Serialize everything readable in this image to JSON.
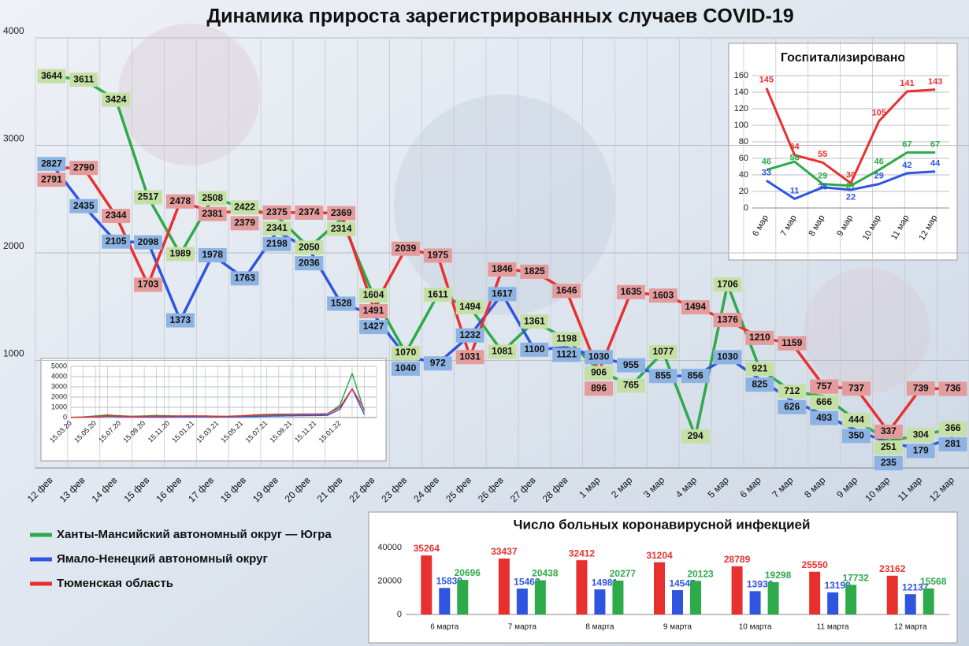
{
  "chart_data": [
    {
      "type": "line",
      "title": "Динамика прироста зарегистрированных случаев COVID-19",
      "categories": [
        "12 фев",
        "13 фев",
        "14 фев",
        "15 фев",
        "16 фев",
        "17 фев",
        "18 фев",
        "19 фев",
        "20 фев",
        "21 фев",
        "22 фев",
        "23 фев",
        "24 фев",
        "25 фев",
        "26 фев",
        "27 фев",
        "28 фев",
        "1 мар",
        "2 мар",
        "3 мар",
        "4 мар",
        "5 мар",
        "6 мар",
        "7 мар",
        "8 мар",
        "9 мар",
        "10 мар",
        "11 мар",
        "12 мар"
      ],
      "series": [
        {
          "name": "Ханты-Мансийский автономный округ — Югра",
          "color": "#2eaa4a",
          "values": [
            3644,
            3611,
            3424,
            2517,
            1989,
            2508,
            2422,
            2341,
            2050,
            2314,
            1604,
            1070,
            1611,
            1494,
            1081,
            1361,
            1198,
            906,
            765,
            1077,
            294,
            1706,
            921,
            712,
            666,
            444,
            251,
            304,
            366
          ]
        },
        {
          "name": "Ямало-Ненецкий автономный округ",
          "color": "#2f55e0",
          "values": [
            2827,
            2435,
            2105,
            2098,
            1373,
            1978,
            1763,
            2198,
            2036,
            1528,
            1427,
            1040,
            972,
            1232,
            1617,
            1100,
            1121,
            1030,
            955,
            855,
            856,
            1030,
            825,
            626,
            493,
            350,
            235,
            179,
            281
          ]
        },
        {
          "name": "Тюменская область",
          "color": "#e8312f",
          "values": [
            2791,
            2790,
            2344,
            1703,
            2478,
            2381,
            2379,
            2375,
            2374,
            2369,
            1491,
            2039,
            1975,
            1031,
            1846,
            1825,
            1646,
            896,
            1635,
            1603,
            1494,
            1376,
            1210,
            1159,
            757,
            737,
            337,
            739,
            736
          ]
        }
      ],
      "ylim": [
        0,
        4000
      ],
      "yticks": [
        1000,
        2000,
        3000,
        4000
      ],
      "grid": true,
      "legend": "bottom-left"
    },
    {
      "type": "line",
      "title": "Госпитализировано",
      "categories": [
        "6 мар",
        "7 мар",
        "8 мар",
        "9 мар",
        "10 мар",
        "11 мар",
        "12 мар"
      ],
      "series": [
        {
          "color": "#e8312f",
          "values": [
            145,
            64,
            55,
            30,
            105,
            141,
            143
          ]
        },
        {
          "color": "#2eaa4a",
          "values": [
            46,
            56,
            29,
            27,
            46,
            67,
            67
          ]
        },
        {
          "color": "#2f55e0",
          "values": [
            33,
            11,
            25,
            22,
            29,
            42,
            44
          ]
        }
      ],
      "ylim": [
        0,
        160
      ],
      "yticks": [
        0,
        20,
        40,
        60,
        80,
        100,
        120,
        140,
        160
      ],
      "grid": true
    },
    {
      "type": "line",
      "categories": [
        "15.03.20",
        null,
        "15.05.20",
        null,
        "15.07.20",
        null,
        "15.09.20",
        null,
        "15.11.20",
        null,
        "15.01.21",
        null,
        "15.03.21",
        null,
        "15.05.21",
        null,
        "15.07.21",
        null,
        "15.09.21",
        null,
        "15.11.21",
        null,
        "15.01.22",
        null,
        null
      ],
      "series": [
        {
          "color": "#2eaa4a",
          "values": [
            20,
            60,
            150,
            250,
            180,
            120,
            150,
            200,
            170,
            140,
            110,
            90,
            80,
            90,
            120,
            180,
            220,
            240,
            260,
            280,
            300,
            350,
            1200,
            4300,
            600
          ]
        },
        {
          "color": "#2f55e0",
          "values": [
            5,
            30,
            80,
            120,
            100,
            80,
            60,
            50,
            60,
            70,
            80,
            90,
            80,
            70,
            90,
            110,
            130,
            150,
            170,
            190,
            200,
            220,
            800,
            2800,
            300
          ]
        },
        {
          "color": "#e8312f",
          "values": [
            10,
            40,
            100,
            180,
            150,
            100,
            120,
            140,
            130,
            150,
            160,
            150,
            120,
            130,
            180,
            250,
            300,
            320,
            330,
            340,
            350,
            380,
            1000,
            2800,
            800
          ]
        }
      ],
      "ylim": [
        0,
        5000
      ],
      "yticks": [
        0,
        1000,
        2000,
        3000,
        4000,
        5000
      ],
      "grid": true
    },
    {
      "type": "bar",
      "title": "Число больных  коронавирусной  инфекцией",
      "categories": [
        "6 марта",
        "7 марта",
        "8 марта",
        "9 марта",
        "10 марта",
        "11 марта",
        "12 марта"
      ],
      "series": [
        {
          "color": "#e8312f",
          "values": [
            35264,
            33437,
            32412,
            31204,
            28789,
            25550,
            23162
          ]
        },
        {
          "color": "#2f55e0",
          "values": [
            15839,
            15462,
            14981,
            14545,
            13936,
            13199,
            12137
          ]
        },
        {
          "color": "#2eaa4a",
          "values": [
            20696,
            20438,
            20277,
            20123,
            19298,
            17732,
            15568
          ]
        }
      ],
      "ylim": [
        0,
        40000
      ],
      "yticks": [
        0,
        20000,
        40000
      ],
      "grid": false
    }
  ]
}
